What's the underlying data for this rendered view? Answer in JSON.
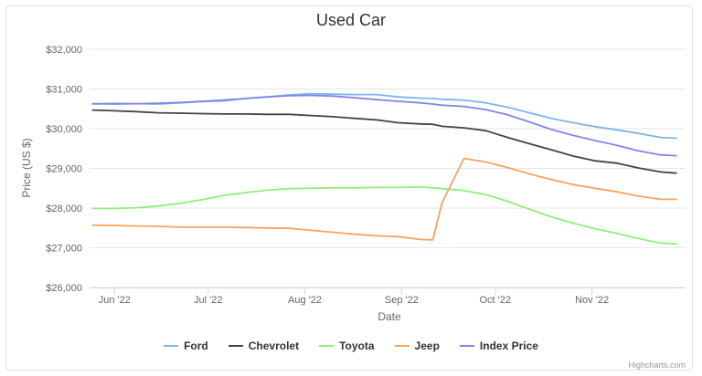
{
  "chart_data": {
    "type": "line",
    "title": "Used Car",
    "xlabel": "Date",
    "ylabel": "Price (US $)",
    "ylim": [
      26000,
      32000
    ],
    "yticks": [
      "$26,000",
      "$27,000",
      "$28,000",
      "$29,000",
      "$30,000",
      "$31,000",
      "$32,000"
    ],
    "xticks": [
      "Jun '22",
      "Jul '22",
      "Aug '22",
      "Sep '22",
      "Oct '22",
      "Nov '22"
    ],
    "xtick_dates": [
      "2022-06-01",
      "2022-07-01",
      "2022-08-01",
      "2022-09-01",
      "2022-10-01",
      "2022-11-01"
    ],
    "x": [
      "2022-05-25",
      "2022-06-01",
      "2022-06-08",
      "2022-06-15",
      "2022-06-22",
      "2022-06-29",
      "2022-07-06",
      "2022-07-13",
      "2022-07-20",
      "2022-07-27",
      "2022-08-03",
      "2022-08-10",
      "2022-08-17",
      "2022-08-24",
      "2022-08-31",
      "2022-09-07",
      "2022-09-11",
      "2022-09-14",
      "2022-09-21",
      "2022-09-28",
      "2022-10-05",
      "2022-10-12",
      "2022-10-19",
      "2022-10-26",
      "2022-11-02",
      "2022-11-09",
      "2022-11-16",
      "2022-11-23",
      "2022-11-28"
    ],
    "series": [
      {
        "name": "Ford",
        "color": "#7cb5ec",
        "values": [
          30620,
          30640,
          30630,
          30620,
          30650,
          30680,
          30700,
          30760,
          30800,
          30850,
          30880,
          30870,
          30860,
          30860,
          30800,
          30770,
          30760,
          30740,
          30720,
          30650,
          30540,
          30400,
          30260,
          30150,
          30050,
          29970,
          29880,
          29780,
          29760
        ]
      },
      {
        "name": "Chevrolet",
        "color": "#434348",
        "values": [
          30470,
          30450,
          30430,
          30400,
          30390,
          30380,
          30370,
          30370,
          30360,
          30360,
          30330,
          30300,
          30260,
          30220,
          30150,
          30120,
          30110,
          30060,
          30020,
          29950,
          29780,
          29620,
          29470,
          29310,
          29190,
          29130,
          29010,
          28910,
          28880
        ]
      },
      {
        "name": "Toyota",
        "color": "#90ed7d",
        "values": [
          27990,
          27990,
          28010,
          28050,
          28120,
          28210,
          28320,
          28390,
          28450,
          28490,
          28500,
          28510,
          28510,
          28520,
          28520,
          28530,
          28510,
          28490,
          28440,
          28340,
          28170,
          27970,
          27780,
          27620,
          27480,
          27360,
          27230,
          27120,
          27100
        ]
      },
      {
        "name": "Jeep",
        "color": "#f7a35c",
        "values": [
          27570,
          27560,
          27550,
          27540,
          27520,
          27520,
          27520,
          27510,
          27500,
          27490,
          27440,
          27390,
          27340,
          27300,
          27280,
          27210,
          27200,
          28140,
          29250,
          29160,
          29020,
          28860,
          28720,
          28590,
          28500,
          28410,
          28300,
          28220,
          28220
        ]
      },
      {
        "name": "Index Price",
        "color": "#8085e9",
        "values": [
          30630,
          30620,
          30630,
          30640,
          30660,
          30690,
          30720,
          30760,
          30800,
          30830,
          30840,
          30820,
          30780,
          30730,
          30690,
          30650,
          30620,
          30590,
          30560,
          30480,
          30350,
          30170,
          29980,
          29830,
          29700,
          29580,
          29440,
          29340,
          29320
        ]
      }
    ],
    "grid": true,
    "legend": "bottom-center"
  },
  "credits": "Highcharts.com"
}
